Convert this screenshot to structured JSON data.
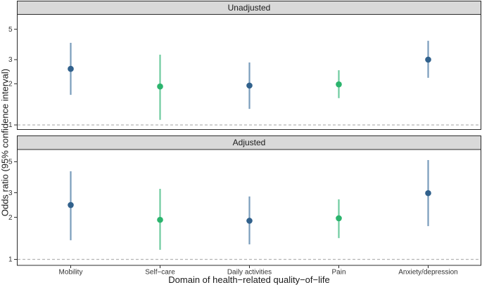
{
  "chart_data": {
    "type": "pointrange-forest",
    "xlabel": "Domain of health−related quality−of−life",
    "ylabel": "Odds ratio (95% confidence interval)",
    "y_scale": "log10",
    "y_ticks": [
      5,
      3,
      2,
      1
    ],
    "reference_line": 1,
    "categories": [
      "Mobility",
      "Self−care",
      "Daily activities",
      "Pain",
      "Anxiety/depression"
    ],
    "palette": {
      "blue": "#31618c",
      "green": "#2bb46d",
      "blue_line": "#7a9dbc",
      "green_line": "#6fcb9f",
      "strip_fill": "#d9d9d9",
      "panel_border": "#2b2b2b",
      "reference_dash": "#b3b3b3",
      "tick_text": "#333333"
    },
    "facets": [
      {
        "label": "Unadjusted",
        "points": [
          {
            "domain": "Mobility",
            "color": "blue",
            "or": 2.57,
            "lo": 1.66,
            "hi": 3.98
          },
          {
            "domain": "Self−care",
            "color": "green",
            "or": 1.91,
            "lo": 1.09,
            "hi": 3.26
          },
          {
            "domain": "Daily activities",
            "color": "blue",
            "or": 1.94,
            "lo": 1.31,
            "hi": 2.86
          },
          {
            "domain": "Pain",
            "color": "green",
            "or": 1.98,
            "lo": 1.57,
            "hi": 2.51
          },
          {
            "domain": "Anxiety/depression",
            "color": "blue",
            "or": 3.0,
            "lo": 2.21,
            "hi": 4.12
          }
        ]
      },
      {
        "label": "Adjusted",
        "points": [
          {
            "domain": "Mobility",
            "color": "blue",
            "or": 2.45,
            "lo": 1.37,
            "hi": 4.27
          },
          {
            "domain": "Self−care",
            "color": "green",
            "or": 1.92,
            "lo": 1.17,
            "hi": 3.2
          },
          {
            "domain": "Daily activities",
            "color": "blue",
            "or": 1.89,
            "lo": 1.28,
            "hi": 2.82
          },
          {
            "domain": "Pain",
            "color": "green",
            "or": 1.97,
            "lo": 1.42,
            "hi": 2.69
          },
          {
            "domain": "Anxiety/depression",
            "color": "blue",
            "or": 2.98,
            "lo": 1.73,
            "hi": 5.14
          }
        ]
      }
    ]
  }
}
